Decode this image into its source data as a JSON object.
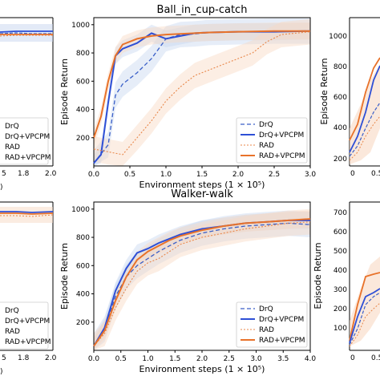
{
  "colors": {
    "drq": "#3a5fc8",
    "vpcpm_blue": "#2e4fd6",
    "rad": "#e8874a",
    "rad_vpcpm": "#e8722a",
    "band_blue": "#c8d6f0",
    "band_orange": "#f8d9c3"
  },
  "legend_labels": [
    "DrQ",
    "DrQ+VPCPM",
    "RAD",
    "RAD+VPCPM"
  ],
  "chart_data": [
    {
      "type": "line",
      "title": "Ball_in_cup-catch",
      "xlabel": "Environment steps (1 × 10⁵)",
      "ylabel": "Episode Return",
      "xlim": [
        0,
        3.0
      ],
      "ylim": [
        0,
        1050
      ],
      "xticks": [
        "0.0",
        "0.5",
        "1.0",
        "1.5",
        "2.0",
        "2.5",
        "3.0"
      ],
      "yticks": [
        "200",
        "400",
        "600",
        "800",
        "1000"
      ],
      "series": [
        {
          "name": "DrQ",
          "x": [
            0,
            0.2,
            0.3,
            0.4,
            0.5,
            0.6,
            0.8,
            1.0,
            1.2,
            1.4,
            1.6,
            2.0,
            2.5,
            3.0
          ],
          "y": [
            20,
            150,
            500,
            580,
            620,
            660,
            760,
            900,
            930,
            935,
            945,
            950,
            955,
            955
          ]
        },
        {
          "name": "DrQ+VPCPM",
          "x": [
            0,
            0.1,
            0.2,
            0.3,
            0.4,
            0.6,
            0.8,
            1.0,
            1.2,
            1.4,
            1.6,
            2.0,
            2.5,
            3.0
          ],
          "y": [
            20,
            80,
            450,
            780,
            830,
            870,
            940,
            900,
            920,
            940,
            945,
            950,
            950,
            955
          ]
        },
        {
          "name": "RAD",
          "x": [
            0,
            0.2,
            0.4,
            0.6,
            0.8,
            1.0,
            1.2,
            1.4,
            1.6,
            1.8,
            2.0,
            2.2,
            2.4,
            2.6,
            3.0
          ],
          "y": [
            120,
            100,
            80,
            200,
            320,
            460,
            560,
            640,
            680,
            720,
            760,
            800,
            880,
            930,
            950
          ]
        },
        {
          "name": "RAD+VPCPM",
          "x": [
            0,
            0.1,
            0.2,
            0.3,
            0.4,
            0.6,
            0.8,
            1.0,
            1.2,
            1.4,
            1.6,
            2.0,
            2.5,
            3.0
          ],
          "y": [
            200,
            350,
            600,
            780,
            860,
            900,
            920,
            930,
            935,
            940,
            945,
            950,
            955,
            955
          ]
        }
      ]
    },
    {
      "type": "line",
      "title": "Walker-walk",
      "xlabel": "Environment steps (1 × 10⁵)",
      "ylabel": "Episode Return",
      "xlim": [
        0,
        4.0
      ],
      "ylim": [
        0,
        1050
      ],
      "xticks": [
        "0.0",
        "0.5",
        "1.0",
        "1.5",
        "2.0",
        "2.5",
        "3.0",
        "3.5",
        "4.0"
      ],
      "yticks": [
        "200",
        "400",
        "600",
        "800",
        "1000"
      ],
      "series": [
        {
          "name": "DrQ",
          "x": [
            0,
            0.2,
            0.4,
            0.6,
            0.8,
            1.0,
            1.2,
            1.4,
            1.6,
            2.0,
            2.4,
            2.8,
            3.2,
            3.6,
            4.0
          ],
          "y": [
            30,
            150,
            380,
            520,
            600,
            650,
            700,
            740,
            780,
            830,
            860,
            880,
            890,
            900,
            890
          ]
        },
        {
          "name": "DrQ+VPCPM",
          "x": [
            0,
            0.2,
            0.4,
            0.6,
            0.8,
            1.0,
            1.2,
            1.4,
            1.6,
            2.0,
            2.4,
            2.8,
            3.2,
            3.6,
            4.0
          ],
          "y": [
            30,
            160,
            420,
            580,
            690,
            720,
            760,
            790,
            820,
            860,
            880,
            900,
            910,
            920,
            920
          ]
        },
        {
          "name": "RAD",
          "x": [
            0,
            0.2,
            0.4,
            0.6,
            0.8,
            1.0,
            1.2,
            1.4,
            1.6,
            2.0,
            2.4,
            2.8,
            3.2,
            3.6,
            4.0
          ],
          "y": [
            30,
            120,
            300,
            440,
            560,
            620,
            650,
            700,
            750,
            800,
            830,
            860,
            880,
            900,
            910
          ]
        },
        {
          "name": "RAD+VPCPM",
          "x": [
            0,
            0.2,
            0.4,
            0.6,
            0.8,
            1.0,
            1.2,
            1.4,
            1.6,
            2.0,
            2.4,
            2.8,
            3.2,
            3.6,
            4.0
          ],
          "y": [
            30,
            140,
            350,
            520,
            640,
            700,
            740,
            780,
            810,
            850,
            880,
            900,
            910,
            920,
            930
          ]
        }
      ]
    }
  ],
  "partial_left_top": {
    "xticks": [
      "5",
      "1.8",
      "2.0"
    ],
    "legend_labels": [
      "DrQ",
      "DrQ+VPCPM",
      "RAD",
      "RAD+VPCPM"
    ]
  },
  "partial_left_bottom": {
    "xticks": [
      "5",
      "1.8",
      "2.0"
    ],
    "legend_labels": [
      "DrQ",
      "DrQ+VPCPM",
      "RAD",
      "RAD+VPCPM"
    ]
  },
  "partial_right_top": {
    "ylabel": "Episode Return",
    "yticks": [
      "200",
      "400",
      "600",
      "800",
      "1000"
    ],
    "xticks": [
      "0",
      "0.5"
    ]
  },
  "partial_right_bottom": {
    "ylabel": "Episode Return",
    "yticks": [
      "100",
      "200",
      "300",
      "400",
      "500",
      "600",
      "700"
    ],
    "xticks": [
      "0",
      "0.5"
    ]
  }
}
